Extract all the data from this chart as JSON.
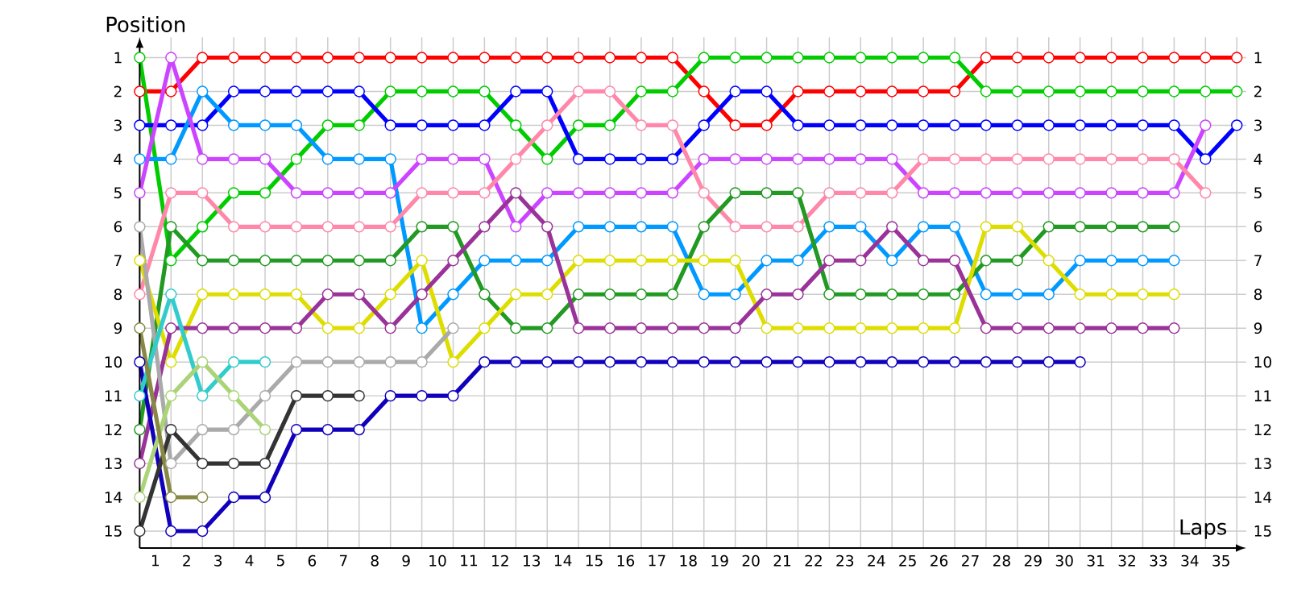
{
  "chart_data": {
    "type": "line",
    "xlabel": "Laps",
    "ylabel": "Position",
    "marker": "circle",
    "grid": true,
    "legend": false,
    "x": [
      0,
      1,
      2,
      3,
      4,
      5,
      6,
      7,
      8,
      9,
      10,
      11,
      12,
      13,
      14,
      15,
      16,
      17,
      18,
      19,
      20,
      21,
      22,
      23,
      24,
      25,
      26,
      27,
      28,
      29,
      30,
      31,
      32,
      33,
      34,
      35
    ],
    "xlim": [
      0,
      35.3
    ],
    "ylim": [
      15.5,
      0.4
    ],
    "y2lim": [
      15.5,
      0.4
    ],
    "yticks": [
      1,
      2,
      3,
      4,
      5,
      6,
      7,
      8,
      9,
      10,
      11,
      12,
      13,
      14,
      15
    ],
    "y2ticks": [
      1,
      2,
      3,
      4,
      5,
      6,
      7,
      8,
      9,
      10,
      11,
      12,
      13,
      14,
      15
    ],
    "xticks": [
      {
        "value": 0,
        "label": null
      },
      {
        "value": 1,
        "label": null
      },
      {
        "value": 2,
        "label": null
      },
      {
        "value": 3,
        "label": null
      },
      {
        "value": 4,
        "label": null
      },
      {
        "value": 5,
        "label": null
      },
      {
        "value": 6,
        "label": null
      },
      {
        "value": 7,
        "label": null
      },
      {
        "value": 8,
        "label": null
      },
      {
        "value": 9,
        "label": null
      },
      {
        "value": 10,
        "label": null
      },
      {
        "value": 11,
        "label": null
      },
      {
        "value": 12,
        "label": null
      },
      {
        "value": 13,
        "label": null
      },
      {
        "value": 14,
        "label": null
      },
      {
        "value": 15,
        "label": null
      },
      {
        "value": 16,
        "label": null
      },
      {
        "value": 17,
        "label": null
      },
      {
        "value": 18,
        "label": null
      },
      {
        "value": 19,
        "label": null
      },
      {
        "value": 20,
        "label": null
      },
      {
        "value": 21,
        "label": null
      },
      {
        "value": 22,
        "label": null
      },
      {
        "value": 23,
        "label": null
      },
      {
        "value": 24,
        "label": null
      },
      {
        "value": 25,
        "label": null
      },
      {
        "value": 26,
        "label": null
      },
      {
        "value": 27,
        "label": null
      },
      {
        "value": 28,
        "label": null
      },
      {
        "value": 29,
        "label": null
      },
      {
        "value": 30,
        "label": null
      },
      {
        "value": 31,
        "label": null
      },
      {
        "value": 32,
        "label": null
      },
      {
        "value": 33,
        "label": null
      },
      {
        "value": 34,
        "label": null
      },
      {
        "value": 35,
        "label": null
      },
      {
        "value": 0.5,
        "label": "1"
      },
      {
        "value": 1.5,
        "label": "2"
      },
      {
        "value": 2.5,
        "label": "3"
      },
      {
        "value": 3.5,
        "label": "4"
      },
      {
        "value": 4.5,
        "label": "5"
      },
      {
        "value": 5.5,
        "label": "6"
      },
      {
        "value": 6.5,
        "label": "7"
      },
      {
        "value": 7.5,
        "label": "8"
      },
      {
        "value": 8.5,
        "label": "9"
      },
      {
        "value": 9.5,
        "label": "10"
      },
      {
        "value": 10.5,
        "label": "11"
      },
      {
        "value": 11.5,
        "label": "12"
      },
      {
        "value": 12.5,
        "label": "13"
      },
      {
        "value": 13.5,
        "label": "14"
      },
      {
        "value": 14.5,
        "label": "15"
      },
      {
        "value": 15.5,
        "label": "16"
      },
      {
        "value": 16.5,
        "label": "17"
      },
      {
        "value": 17.5,
        "label": "18"
      },
      {
        "value": 18.5,
        "label": "19"
      },
      {
        "value": 19.5,
        "label": "20"
      },
      {
        "value": 20.5,
        "label": "21"
      },
      {
        "value": 21.5,
        "label": "22"
      },
      {
        "value": 22.5,
        "label": "23"
      },
      {
        "value": 23.5,
        "label": "24"
      },
      {
        "value": 24.5,
        "label": "25"
      },
      {
        "value": 25.5,
        "label": "26"
      },
      {
        "value": 26.5,
        "label": "27"
      },
      {
        "value": 27.5,
        "label": "28"
      },
      {
        "value": 28.5,
        "label": "29"
      },
      {
        "value": 29.5,
        "label": "30"
      },
      {
        "value": 30.5,
        "label": "31"
      },
      {
        "value": 31.5,
        "label": "32"
      },
      {
        "value": 32.5,
        "label": "33"
      },
      {
        "value": 33.5,
        "label": "34"
      },
      {
        "value": 34.5,
        "label": "35"
      }
    ],
    "series": [
      {
        "color": "#ff0000",
        "values": [
          2,
          2,
          1,
          1,
          1,
          1,
          1,
          1,
          1,
          1,
          1,
          1,
          1,
          1,
          1,
          1,
          1,
          1,
          2,
          3,
          3,
          2,
          2,
          2,
          2,
          2,
          2,
          1,
          1,
          1,
          1,
          1,
          1,
          1,
          1,
          1
        ]
      },
      {
        "color": "#00cc00",
        "values": [
          1,
          7,
          6,
          5,
          5,
          4,
          3,
          3,
          2,
          2,
          2,
          2,
          3,
          4,
          3,
          3,
          2,
          2,
          1,
          1,
          1,
          1,
          1,
          1,
          1,
          1,
          1,
          2,
          2,
          2,
          2,
          2,
          2,
          2,
          2,
          2
        ]
      },
      {
        "color": "#0000ff",
        "values": [
          3,
          3,
          3,
          2,
          2,
          2,
          2,
          2,
          3,
          3,
          3,
          3,
          2,
          2,
          4,
          4,
          4,
          4,
          3,
          2,
          2,
          3,
          3,
          3,
          3,
          3,
          3,
          3,
          3,
          3,
          3,
          3,
          3,
          3,
          4,
          3
        ]
      },
      {
        "color": "#0099ff",
        "values": [
          4,
          4,
          2,
          3,
          3,
          3,
          4,
          4,
          4,
          9,
          8,
          7,
          7,
          7,
          6,
          6,
          6,
          6,
          8,
          8,
          7,
          7,
          6,
          6,
          7,
          6,
          6,
          8,
          8,
          8,
          7,
          7,
          7,
          7,
          null,
          null
        ]
      },
      {
        "color": "#cc44ff",
        "values": [
          5,
          1,
          4,
          4,
          4,
          5,
          5,
          5,
          5,
          4,
          4,
          4,
          6,
          5,
          5,
          5,
          5,
          5,
          4,
          4,
          4,
          4,
          4,
          4,
          4,
          5,
          5,
          5,
          5,
          5,
          5,
          5,
          5,
          5,
          3,
          null
        ]
      },
      {
        "color": "#ff88aa",
        "values": [
          8,
          5,
          5,
          6,
          6,
          6,
          6,
          6,
          6,
          5,
          5,
          5,
          4,
          3,
          2,
          2,
          3,
          3,
          5,
          6,
          6,
          6,
          5,
          5,
          5,
          4,
          4,
          4,
          4,
          4,
          4,
          4,
          4,
          4,
          5,
          null
        ]
      },
      {
        "color": "#229922",
        "values": [
          12,
          6,
          7,
          7,
          7,
          7,
          7,
          7,
          7,
          6,
          6,
          8,
          9,
          9,
          8,
          8,
          8,
          8,
          6,
          5,
          5,
          5,
          8,
          8,
          8,
          8,
          8,
          7,
          7,
          6,
          6,
          6,
          6,
          6,
          null,
          null
        ]
      },
      {
        "color": "#dddd00",
        "values": [
          7,
          10,
          8,
          8,
          8,
          8,
          9,
          9,
          8,
          7,
          10,
          9,
          8,
          8,
          7,
          7,
          7,
          7,
          7,
          7,
          9,
          9,
          9,
          9,
          9,
          9,
          9,
          6,
          6,
          7,
          8,
          8,
          8,
          8,
          null,
          null
        ]
      },
      {
        "color": "#993399",
        "values": [
          13,
          9,
          9,
          9,
          9,
          9,
          8,
          8,
          9,
          8,
          7,
          6,
          5,
          6,
          9,
          9,
          9,
          9,
          9,
          9,
          8,
          8,
          7,
          7,
          6,
          7,
          7,
          9,
          9,
          9,
          9,
          9,
          9,
          9,
          null,
          null
        ]
      },
      {
        "color": "#1100bb",
        "values": [
          10,
          15,
          15,
          14,
          14,
          12,
          12,
          12,
          11,
          11,
          11,
          10,
          10,
          10,
          10,
          10,
          10,
          10,
          10,
          10,
          10,
          10,
          10,
          10,
          10,
          10,
          10,
          10,
          10,
          10,
          10,
          null,
          null,
          null,
          null,
          null
        ]
      },
      {
        "color": "#aaaaaa",
        "values": [
          6,
          13,
          12,
          12,
          11,
          10,
          10,
          10,
          10,
          10,
          9,
          null,
          null,
          null,
          null,
          null,
          null,
          null,
          null,
          null,
          null,
          null,
          null,
          null,
          null,
          null,
          null,
          null,
          null,
          null,
          null,
          null,
          null,
          null,
          null,
          null
        ]
      },
      {
        "color": "#333333",
        "values": [
          15,
          12,
          13,
          13,
          13,
          11,
          11,
          11,
          null,
          null,
          null,
          null,
          null,
          null,
          null,
          null,
          null,
          null,
          null,
          null,
          null,
          null,
          null,
          null,
          null,
          null,
          null,
          null,
          null,
          null,
          null,
          null,
          null,
          null,
          null,
          null
        ]
      },
      {
        "color": "#33cccc",
        "values": [
          11,
          8,
          11,
          10,
          10,
          null,
          null,
          null,
          null,
          null,
          null,
          null,
          null,
          null,
          null,
          null,
          null,
          null,
          null,
          null,
          null,
          null,
          null,
          null,
          null,
          null,
          null,
          null,
          null,
          null,
          null,
          null,
          null,
          null,
          null,
          null
        ]
      },
      {
        "color": "#aad477",
        "values": [
          14,
          11,
          10,
          11,
          12,
          null,
          null,
          null,
          null,
          null,
          null,
          null,
          null,
          null,
          null,
          null,
          null,
          null,
          null,
          null,
          null,
          null,
          null,
          null,
          null,
          null,
          null,
          null,
          null,
          null,
          null,
          null,
          null,
          null,
          null,
          null
        ]
      },
      {
        "color": "#888844",
        "values": [
          9,
          14,
          14,
          null,
          null,
          null,
          null,
          null,
          null,
          null,
          null,
          null,
          null,
          null,
          null,
          null,
          null,
          null,
          null,
          null,
          null,
          null,
          null,
          null,
          null,
          null,
          null,
          null,
          null,
          null,
          null,
          null,
          null,
          null,
          null,
          null
        ]
      }
    ]
  }
}
